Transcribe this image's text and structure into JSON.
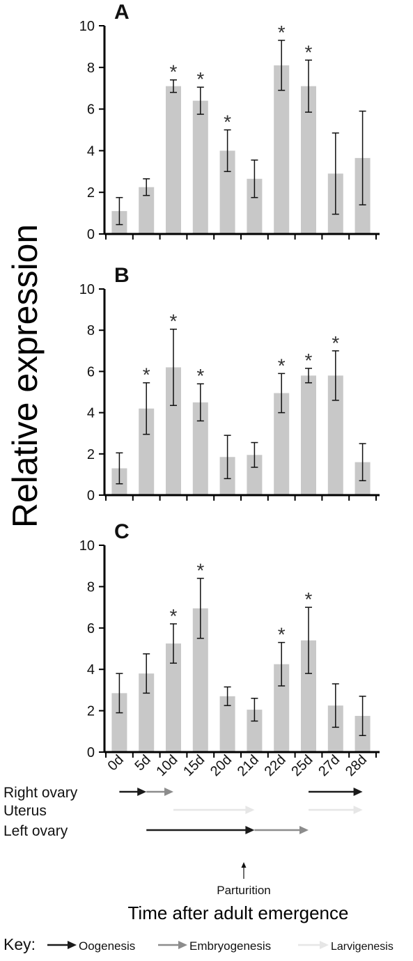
{
  "figure": {
    "ylabel": "Relative expression",
    "xlabel": "Time after adult emergence",
    "categories": [
      "0d",
      "5d",
      "10d",
      "15d",
      "20d",
      "21d",
      "22d",
      "25d",
      "27d",
      "28d"
    ]
  },
  "chart_data": [
    {
      "type": "bar",
      "panel_label": "A",
      "ylim": [
        0,
        10
      ],
      "yticks": [
        0,
        2,
        4,
        6,
        8,
        10
      ],
      "categories": [
        "0d",
        "5d",
        "10d",
        "15d",
        "20d",
        "21d",
        "22d",
        "25d",
        "27d",
        "28d"
      ],
      "values": [
        1.1,
        2.25,
        7.1,
        6.4,
        4.0,
        2.65,
        8.1,
        7.1,
        2.9,
        3.65
      ],
      "errors": [
        0.65,
        0.4,
        0.3,
        0.65,
        1.0,
        0.9,
        1.2,
        1.25,
        1.95,
        2.25
      ],
      "significant": [
        false,
        false,
        true,
        true,
        true,
        false,
        true,
        true,
        false,
        false
      ],
      "grid": false,
      "bar_color": "#c8c8c8"
    },
    {
      "type": "bar",
      "panel_label": "B",
      "ylim": [
        0,
        10
      ],
      "yticks": [
        0,
        2,
        4,
        6,
        8,
        10
      ],
      "categories": [
        "0d",
        "5d",
        "10d",
        "15d",
        "20d",
        "21d",
        "22d",
        "25d",
        "27d",
        "28d"
      ],
      "values": [
        1.3,
        4.2,
        6.2,
        4.5,
        1.85,
        1.95,
        4.95,
        5.8,
        5.8,
        1.6
      ],
      "errors": [
        0.75,
        1.25,
        1.85,
        0.9,
        1.05,
        0.6,
        0.95,
        0.35,
        1.2,
        0.9
      ],
      "significant": [
        false,
        true,
        true,
        true,
        false,
        false,
        true,
        true,
        true,
        false
      ],
      "grid": false,
      "bar_color": "#c8c8c8"
    },
    {
      "type": "bar",
      "panel_label": "C",
      "ylim": [
        0,
        10
      ],
      "yticks": [
        0,
        2,
        4,
        6,
        8,
        10
      ],
      "categories": [
        "0d",
        "5d",
        "10d",
        "15d",
        "20d",
        "21d",
        "22d",
        "25d",
        "27d",
        "28d"
      ],
      "values": [
        2.85,
        3.8,
        5.25,
        6.95,
        2.7,
        2.05,
        4.25,
        5.4,
        2.25,
        1.75
      ],
      "errors": [
        0.95,
        0.95,
        0.95,
        1.45,
        0.45,
        0.55,
        1.05,
        1.6,
        1.05,
        0.95
      ],
      "significant": [
        false,
        false,
        true,
        true,
        false,
        false,
        true,
        true,
        false,
        false
      ],
      "grid": false,
      "bar_color": "#c8c8c8"
    }
  ],
  "stages": {
    "rows": [
      {
        "label": "Right ovary",
        "segments": [
          {
            "from": "0d",
            "to": "5d",
            "process": "oogenesis"
          },
          {
            "from": "5d",
            "to": "10d",
            "process": "embryogenesis"
          },
          {
            "from": "25d",
            "to": "28d",
            "process": "oogenesis"
          }
        ]
      },
      {
        "label": "Uterus",
        "segments": [
          {
            "from": "10d",
            "to": "21d",
            "process": "larvigenesis"
          },
          {
            "from": "25d",
            "to": "28d",
            "process": "larvigenesis"
          }
        ]
      },
      {
        "label": "Left ovary",
        "segments": [
          {
            "from": "5d",
            "to": "21d",
            "process": "oogenesis"
          },
          {
            "from": "21d",
            "to": "25d",
            "process": "embryogenesis"
          }
        ]
      }
    ],
    "event": {
      "label": "Parturition",
      "at": "21d"
    }
  },
  "key": {
    "title": "Key:",
    "items": [
      {
        "label": "Oogenesis",
        "color": "#1a1a1a",
        "process": "oogenesis"
      },
      {
        "label": "Embryogenesis",
        "color": "#8c8c8c",
        "process": "embryogenesis"
      },
      {
        "label": "Larvigenesis",
        "color": "#e6e6e6",
        "process": "larvigenesis"
      }
    ]
  }
}
